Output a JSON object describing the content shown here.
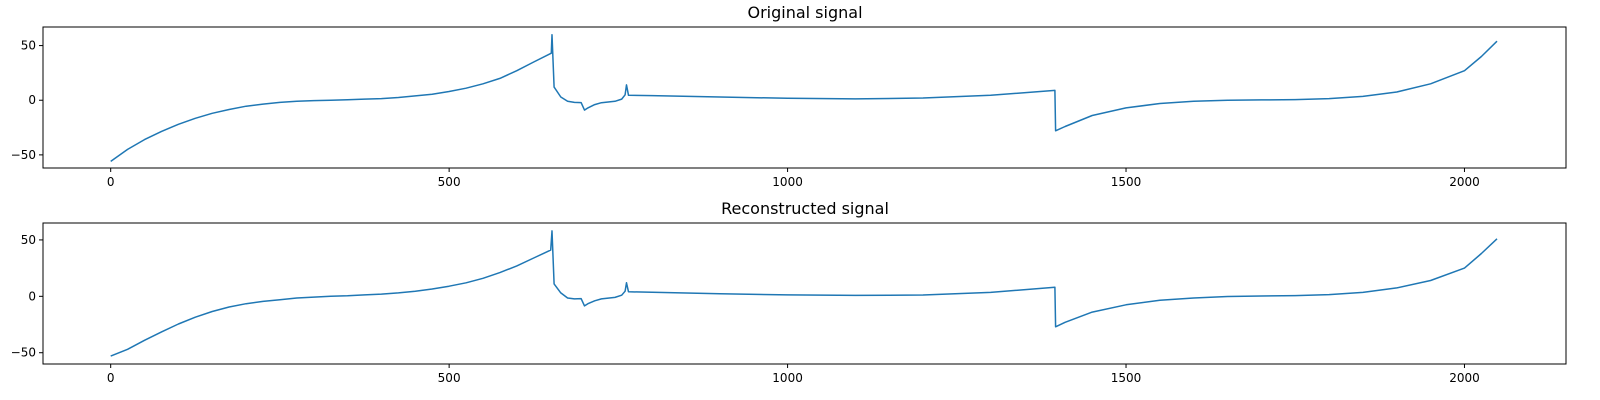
{
  "chart_data": [
    {
      "type": "line",
      "title": "Original signal",
      "xlabel": "",
      "ylabel": "",
      "xlim": [
        -100,
        2150
      ],
      "ylim": [
        -62,
        67
      ],
      "x_ticks": [
        0,
        500,
        1000,
        1500,
        2000
      ],
      "y_ticks": [
        -50,
        0,
        50
      ],
      "grid": false,
      "line_color": "#1f77b4",
      "series": [
        {
          "x": [
            0,
            25,
            50,
            75,
            100,
            125,
            150,
            175,
            200,
            225,
            250,
            275,
            300,
            325,
            350,
            375,
            400,
            425,
            450,
            475,
            500,
            525,
            550,
            575,
            600,
            625,
            651,
            652,
            655,
            665,
            675,
            685,
            695,
            700,
            705,
            715,
            725,
            735,
            745,
            755,
            760,
            762,
            765,
            800,
            900,
            1000,
            1100,
            1200,
            1300,
            1395,
            1396,
            1410,
            1450,
            1500,
            1550,
            1600,
            1650,
            1700,
            1750,
            1800,
            1850,
            1900,
            1950,
            2000,
            2025,
            2048
          ],
          "y": [
            -56,
            -45,
            -36,
            -28.5,
            -22,
            -16.5,
            -12,
            -8.5,
            -5.5,
            -3.5,
            -2,
            -1,
            -0.3,
            0,
            0.5,
            1,
            1.5,
            2.5,
            4,
            5.5,
            8,
            11,
            15,
            20,
            27,
            35,
            43,
            60,
            12,
            3,
            -1,
            -2,
            -2.2,
            -9,
            -7,
            -4,
            -2.3,
            -1.6,
            -1,
            1,
            5,
            14,
            4.5,
            4.2,
            3,
            1.8,
            1.2,
            2,
            4.5,
            9,
            -28,
            -24,
            -14,
            -7,
            -3,
            -1,
            0,
            0.3,
            0.6,
            1.5,
            3.5,
            7.5,
            15,
            27,
            40,
            54
          ]
        }
      ]
    },
    {
      "type": "line",
      "title": "Reconstructed signal",
      "xlabel": "",
      "ylabel": "",
      "xlim": [
        -100,
        2150
      ],
      "ylim": [
        -60,
        65
      ],
      "x_ticks": [
        0,
        500,
        1000,
        1500,
        2000
      ],
      "y_ticks": [
        -50,
        0,
        50
      ],
      "grid": false,
      "line_color": "#1f77b4",
      "series": [
        {
          "x": [
            0,
            25,
            50,
            75,
            100,
            125,
            150,
            175,
            200,
            225,
            250,
            275,
            300,
            325,
            350,
            375,
            400,
            425,
            450,
            475,
            500,
            525,
            550,
            575,
            600,
            625,
            650,
            652,
            655,
            665,
            675,
            685,
            695,
            700,
            705,
            715,
            725,
            735,
            745,
            755,
            760,
            762,
            765,
            800,
            900,
            1000,
            1100,
            1200,
            1300,
            1395,
            1396,
            1410,
            1450,
            1500,
            1550,
            1600,
            1650,
            1700,
            1750,
            1800,
            1850,
            1900,
            1950,
            2000,
            2025,
            2048
          ],
          "y": [
            -53,
            -47,
            -39,
            -31.5,
            -24.5,
            -18.5,
            -13.5,
            -9.5,
            -6.5,
            -4.5,
            -3,
            -1.5,
            -0.7,
            0,
            0.5,
            1.3,
            2,
            3,
            4.5,
            6.5,
            9,
            12,
            16,
            21,
            27,
            34,
            41,
            58,
            11,
            3,
            -1.5,
            -2.3,
            -2,
            -8.5,
            -6.5,
            -4,
            -2.3,
            -1.6,
            -1,
            1,
            4.5,
            12,
            4,
            3.6,
            2.3,
            1.3,
            0.8,
            1.2,
            3.5,
            8,
            -27,
            -23,
            -14,
            -7.5,
            -3.5,
            -1.5,
            -0.2,
            0.3,
            0.6,
            1.5,
            3.5,
            7.5,
            14,
            25,
            38,
            51
          ]
        }
      ]
    }
  ]
}
